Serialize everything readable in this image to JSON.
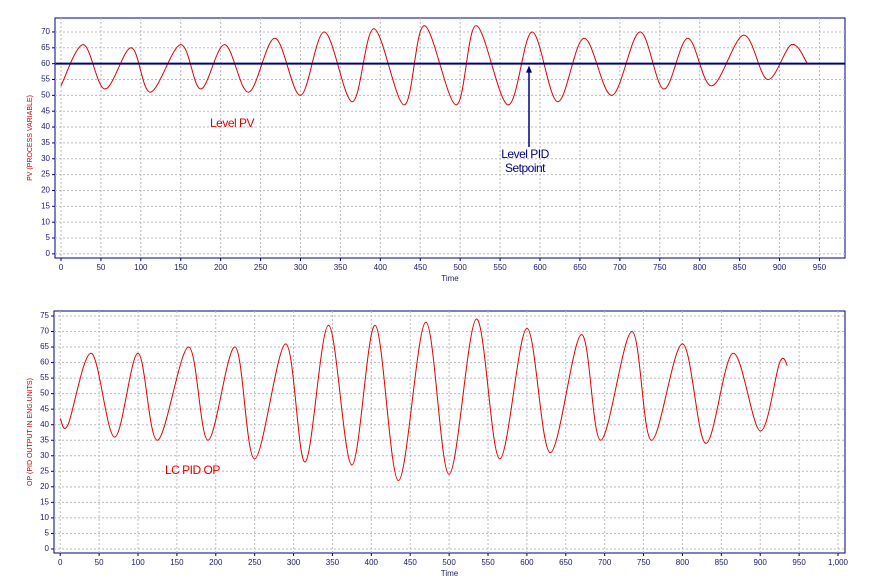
{
  "chart_data": [
    {
      "type": "line",
      "xlabel": "Time",
      "ylabel": "PV (PROCESS VARIABLE)",
      "xlim": [
        -7.5,
        982
      ],
      "ylim": [
        -1.3,
        74.4
      ],
      "xticks": [
        0,
        50,
        100,
        150,
        200,
        250,
        300,
        350,
        400,
        450,
        500,
        550,
        600,
        650,
        700,
        750,
        800,
        850,
        900,
        950
      ],
      "yticks": [
        0,
        5,
        10,
        15,
        20,
        25,
        30,
        35,
        40,
        45,
        50,
        55,
        60,
        65,
        70
      ],
      "grid": true,
      "series": [
        {
          "name": "Level PV",
          "color": "#e00000",
          "x": [
            0,
            28,
            55,
            88,
            112,
            150,
            175,
            205,
            235,
            268,
            300,
            330,
            365,
            392,
            430,
            455,
            495,
            520,
            560,
            590,
            622,
            655,
            690,
            725,
            755,
            785,
            815,
            855,
            885,
            915,
            935
          ],
          "values": [
            53,
            66,
            52,
            65,
            51,
            66,
            52,
            66,
            51,
            68,
            50,
            70,
            48,
            71,
            47,
            72,
            47,
            72,
            47,
            70,
            48,
            68,
            50,
            70,
            52,
            68,
            53,
            69,
            55,
            66,
            60
          ]
        },
        {
          "name": "Level PID Setpoint",
          "color": "#000080",
          "x": [
            -7,
            982
          ],
          "values": [
            60,
            60
          ]
        }
      ],
      "annotations": [
        {
          "text": "Level PV",
          "color": "#e00000"
        },
        {
          "text": [
            "Level PID",
            "Setpoint"
          ],
          "color": "#000080"
        }
      ]
    },
    {
      "type": "line",
      "xlabel": "Time",
      "ylabel": "OP (PID OUTPUT IN ENG.UNITS)",
      "xlim": [
        -8,
        1009
      ],
      "ylim": [
        -1.3,
        76.6
      ],
      "xticks": [
        0,
        50,
        100,
        150,
        200,
        250,
        300,
        350,
        400,
        450,
        500,
        550,
        600,
        650,
        700,
        750,
        800,
        850,
        900,
        950,
        {
          "value": 1000,
          "label": "1,000"
        }
      ],
      "yticks": [
        0,
        5,
        10,
        15,
        20,
        25,
        30,
        35,
        40,
        45,
        50,
        55,
        60,
        65,
        70,
        75
      ],
      "grid": true,
      "series": [
        {
          "name": "LC PID OP",
          "color": "#e00000",
          "x": [
            0,
            10,
            40,
            70,
            100,
            125,
            165,
            190,
            225,
            250,
            290,
            315,
            345,
            375,
            405,
            435,
            470,
            500,
            535,
            565,
            600,
            630,
            670,
            695,
            735,
            760,
            800,
            830,
            865,
            900,
            925,
            935
          ],
          "values": [
            42,
            40,
            63,
            36,
            63,
            35,
            65,
            35,
            65,
            29,
            66,
            28,
            72,
            27,
            72,
            22,
            73,
            24,
            74,
            29,
            71,
            31,
            69,
            35,
            70,
            35,
            66,
            34,
            63,
            38,
            60,
            59
          ]
        }
      ],
      "annotations": [
        {
          "text": "LC PID OP",
          "color": "#e00000"
        }
      ]
    }
  ]
}
